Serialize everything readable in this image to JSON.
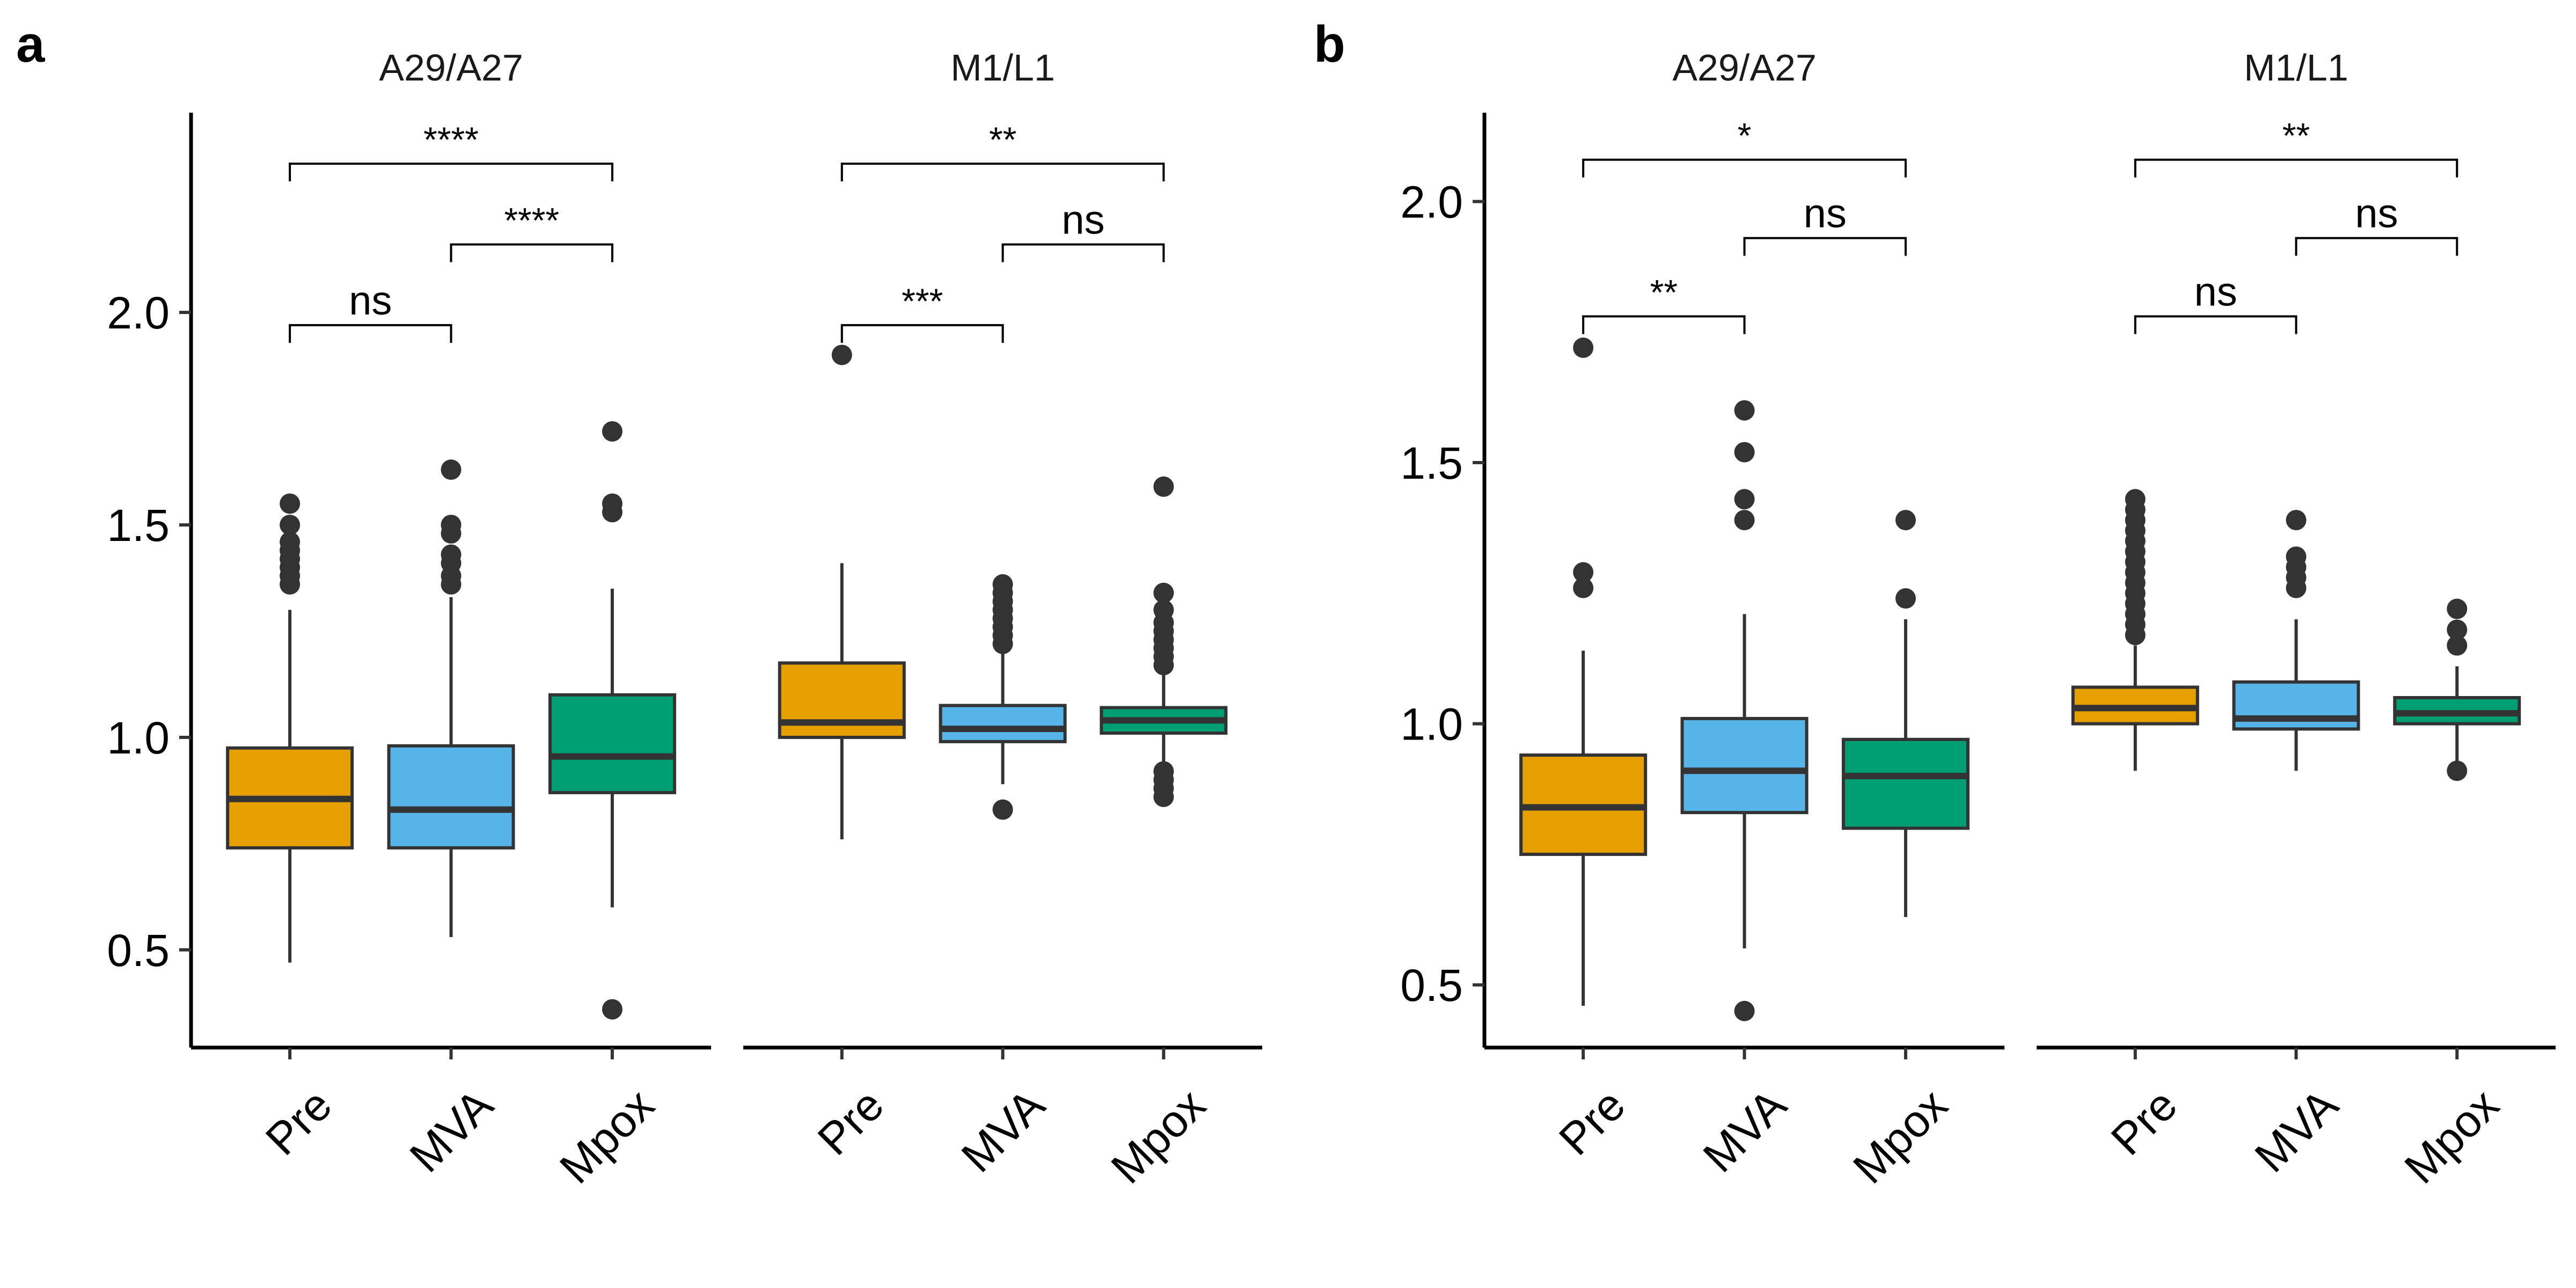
{
  "panel_labels": [
    "a",
    "b"
  ],
  "colors": {
    "Pre": "#E69F00",
    "MVA": "#56B4E9",
    "Mpox": "#009E73",
    "ink": "#333333",
    "axis": "#000000"
  },
  "chart_data": [
    {
      "type": "box",
      "panel": "a",
      "ylim": [
        0.27,
        2.47
      ],
      "yticks": [
        0.5,
        1.0,
        1.5,
        2.0
      ],
      "ytick_labels": [
        "0.5",
        "1.0",
        "1.5",
        "2.0"
      ],
      "categories": [
        "Pre",
        "MVA",
        "Mpox"
      ],
      "facets": [
        {
          "title": "A29/A27",
          "boxes": [
            {
              "group": "Pre",
              "whisker_low": 0.47,
              "q1": 0.74,
              "median": 0.855,
              "q3": 0.975,
              "whisker_high": 1.3,
              "outliers": [
                1.36,
                1.38,
                1.4,
                1.42,
                1.44,
                1.46,
                1.5,
                1.55
              ]
            },
            {
              "group": "MVA",
              "whisker_low": 0.53,
              "q1": 0.74,
              "median": 0.83,
              "q3": 0.98,
              "whisker_high": 1.33,
              "outliers": [
                1.36,
                1.38,
                1.41,
                1.43,
                1.48,
                1.5,
                1.63
              ]
            },
            {
              "group": "Mpox",
              "whisker_low": 0.6,
              "q1": 0.87,
              "median": 0.955,
              "q3": 1.1,
              "whisker_high": 1.35,
              "outliers": [
                0.36,
                1.53,
                1.55,
                1.72
              ]
            }
          ],
          "comparisons": [
            {
              "from": "Pre",
              "to": "MVA",
              "y": 1.97,
              "label": "ns"
            },
            {
              "from": "MVA",
              "to": "Mpox",
              "y": 2.16,
              "label": "****"
            },
            {
              "from": "Pre",
              "to": "Mpox",
              "y": 2.35,
              "label": "****"
            }
          ]
        },
        {
          "title": "M1/L1",
          "boxes": [
            {
              "group": "Pre",
              "whisker_low": 0.76,
              "q1": 1.0,
              "median": 1.035,
              "q3": 1.175,
              "whisker_high": 1.41,
              "outliers": [
                1.9
              ]
            },
            {
              "group": "MVA",
              "whisker_low": 0.89,
              "q1": 0.99,
              "median": 1.02,
              "q3": 1.075,
              "whisker_high": 1.2,
              "outliers": [
                0.83,
                1.22,
                1.24,
                1.26,
                1.28,
                1.3,
                1.32,
                1.34,
                1.36
              ]
            },
            {
              "group": "Mpox",
              "whisker_low": 0.93,
              "q1": 1.01,
              "median": 1.04,
              "q3": 1.07,
              "whisker_high": 1.15,
              "outliers": [
                0.86,
                0.88,
                0.9,
                0.92,
                1.17,
                1.19,
                1.21,
                1.23,
                1.25,
                1.27,
                1.3,
                1.34,
                1.59
              ]
            }
          ],
          "comparisons": [
            {
              "from": "Pre",
              "to": "MVA",
              "y": 1.97,
              "label": "***"
            },
            {
              "from": "MVA",
              "to": "Mpox",
              "y": 2.16,
              "label": "ns"
            },
            {
              "from": "Pre",
              "to": "Mpox",
              "y": 2.35,
              "label": "**"
            }
          ]
        }
      ]
    },
    {
      "type": "box",
      "panel": "b",
      "ylim": [
        0.38,
        2.17
      ],
      "yticks": [
        0.5,
        1.0,
        1.5,
        2.0
      ],
      "ytick_labels": [
        "0.5",
        "1.0",
        "1.5",
        "2.0"
      ],
      "categories": [
        "Pre",
        "MVA",
        "Mpox"
      ],
      "facets": [
        {
          "title": "A29/A27",
          "boxes": [
            {
              "group": "Pre",
              "whisker_low": 0.46,
              "q1": 0.75,
              "median": 0.84,
              "q3": 0.94,
              "whisker_high": 1.14,
              "outliers": [
                1.26,
                1.29,
                1.72
              ]
            },
            {
              "group": "MVA",
              "whisker_low": 0.57,
              "q1": 0.83,
              "median": 0.91,
              "q3": 1.01,
              "whisker_high": 1.21,
              "outliers": [
                0.45,
                1.39,
                1.43,
                1.52,
                1.6
              ]
            },
            {
              "group": "Mpox",
              "whisker_low": 0.63,
              "q1": 0.8,
              "median": 0.9,
              "q3": 0.97,
              "whisker_high": 1.2,
              "outliers": [
                1.24,
                1.39
              ]
            }
          ],
          "comparisons": [
            {
              "from": "Pre",
              "to": "MVA",
              "y": 1.78,
              "label": "**"
            },
            {
              "from": "MVA",
              "to": "Mpox",
              "y": 1.93,
              "label": "ns"
            },
            {
              "from": "Pre",
              "to": "Mpox",
              "y": 2.08,
              "label": "*"
            }
          ]
        },
        {
          "title": "M1/L1",
          "boxes": [
            {
              "group": "Pre",
              "whisker_low": 0.91,
              "q1": 1.0,
              "median": 1.03,
              "q3": 1.07,
              "whisker_high": 1.15,
              "outliers": [
                1.17,
                1.19,
                1.21,
                1.23,
                1.25,
                1.27,
                1.29,
                1.31,
                1.33,
                1.35,
                1.37,
                1.39,
                1.41,
                1.43
              ]
            },
            {
              "group": "MVA",
              "whisker_low": 0.91,
              "q1": 0.99,
              "median": 1.01,
              "q3": 1.08,
              "whisker_high": 1.2,
              "outliers": [
                1.26,
                1.28,
                1.3,
                1.32,
                1.39
              ]
            },
            {
              "group": "Mpox",
              "whisker_low": 0.91,
              "q1": 1.0,
              "median": 1.02,
              "q3": 1.05,
              "whisker_high": 1.11,
              "outliers": [
                0.91,
                1.15,
                1.18,
                1.22
              ]
            }
          ],
          "comparisons": [
            {
              "from": "Pre",
              "to": "MVA",
              "y": 1.78,
              "label": "ns"
            },
            {
              "from": "MVA",
              "to": "Mpox",
              "y": 1.93,
              "label": "ns"
            },
            {
              "from": "Pre",
              "to": "Mpox",
              "y": 2.08,
              "label": "**"
            }
          ]
        }
      ]
    }
  ]
}
